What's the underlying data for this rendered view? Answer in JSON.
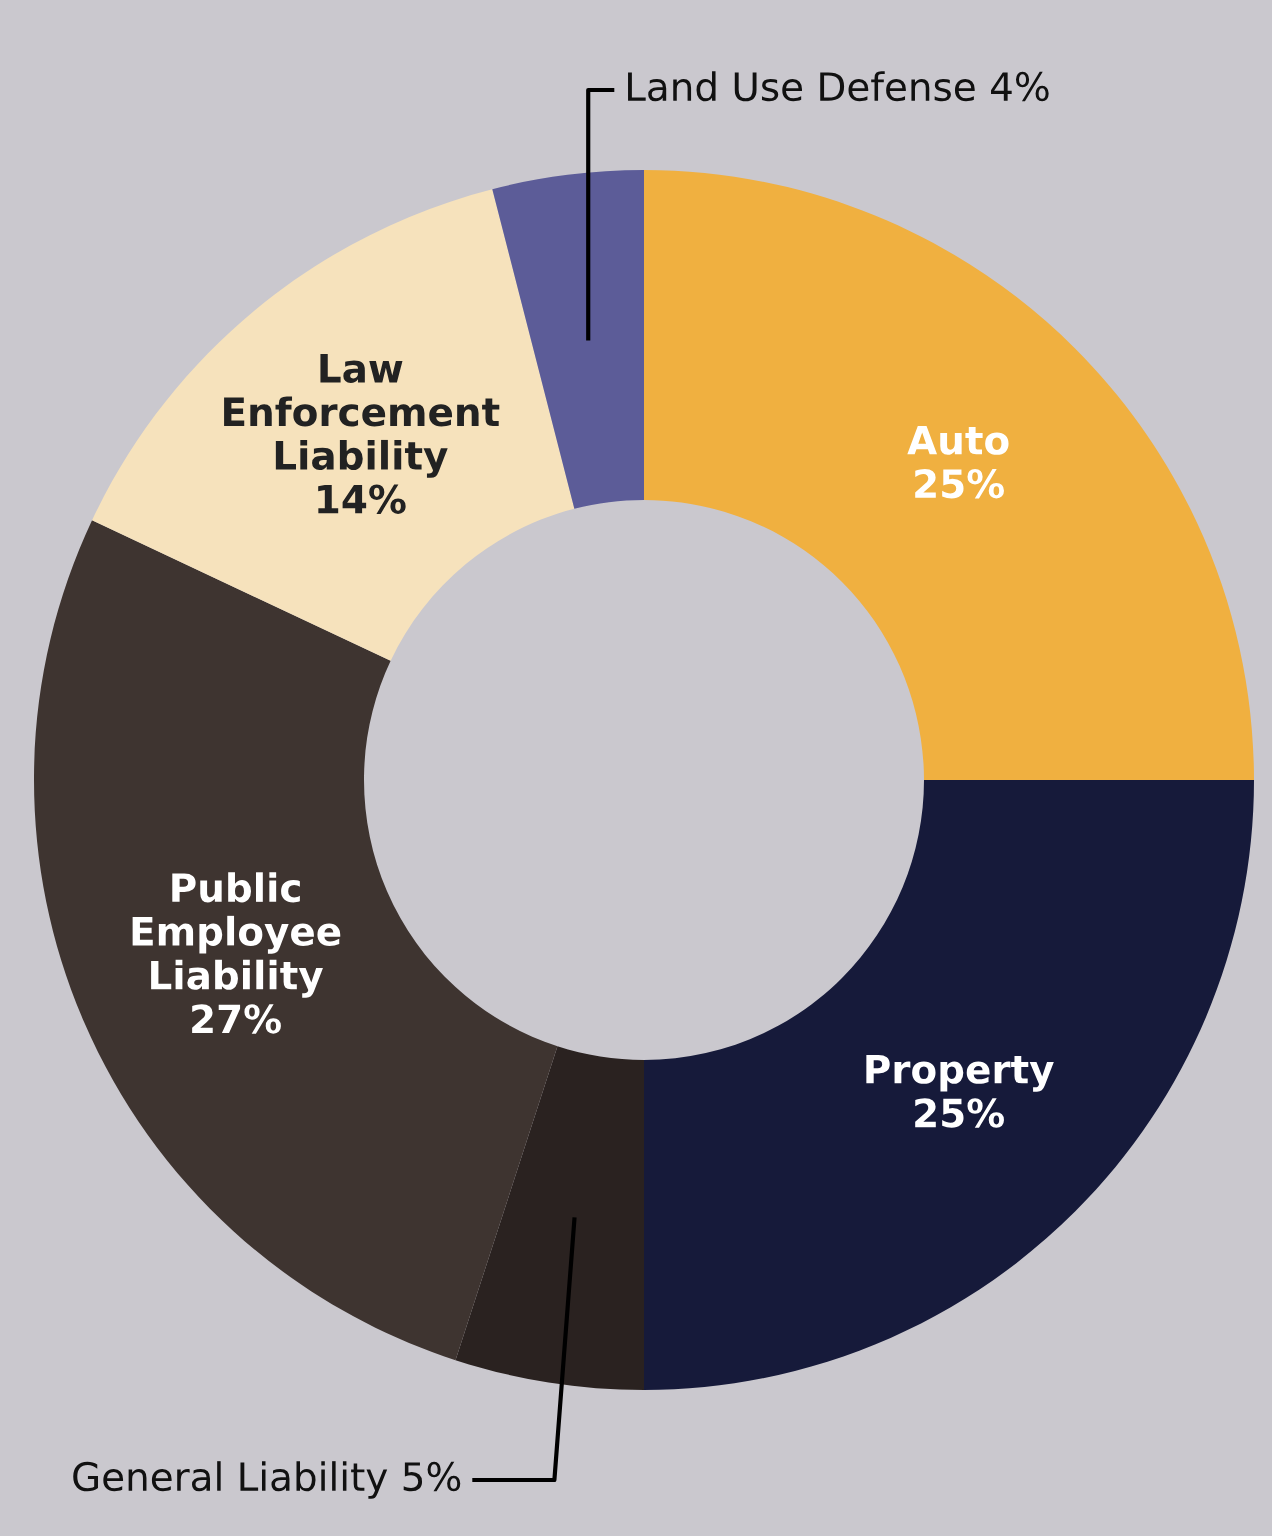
{
  "chart_data": {
    "type": "donut",
    "categories": [
      "Auto",
      "Property",
      "General Liability",
      "Public\nEmployee\nLiability",
      "Law\nEnforcement\nLiability",
      "Land Use Defense"
    ],
    "values": [
      25,
      25,
      5,
      27,
      14,
      4
    ],
    "value_labels": [
      "25%",
      "25%",
      "5%",
      "27%",
      "14%",
      "4%"
    ],
    "colors": [
      "#f0b040",
      "#161a3a",
      "#2a2220",
      "#3e3430",
      "#f6e2bc",
      "#5c5c98"
    ],
    "legend": false
  }
}
